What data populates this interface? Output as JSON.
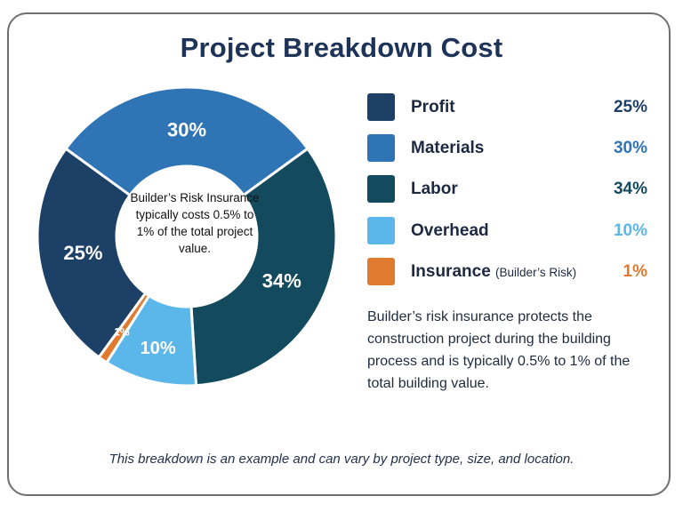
{
  "title": "Project Breakdown Cost",
  "center_note": "Builder’s Risk Insurance typically costs 0.5% to 1% of the total project value.",
  "description": "Builder’s risk insurance protects the construction project during the building process and is typically 0.5% to 1% of the total building value.",
  "footnote": "This breakdown is an example and can vary by project type, size, and location.",
  "legend": [
    {
      "label": "Profit",
      "sublabel": "",
      "value": "25%",
      "color": "#1d4066",
      "value_color": "#1d4066"
    },
    {
      "label": "Materials",
      "sublabel": "",
      "value": "30%",
      "color": "#2f74b5",
      "value_color": "#2f74b5"
    },
    {
      "label": "Labor",
      "sublabel": "",
      "value": "34%",
      "color": "#134a5e",
      "value_color": "#134a5e"
    },
    {
      "label": "Overhead",
      "sublabel": "",
      "value": "10%",
      "color": "#5bb7ea",
      "value_color": "#5bb7ea"
    },
    {
      "label": "Insurance",
      "sublabel": "(Builder’s Risk)",
      "value": "1%",
      "color": "#e07a2e",
      "value_color": "#e07a2e"
    }
  ],
  "chart_data": {
    "type": "pie",
    "donut": true,
    "title": "Project Breakdown Cost",
    "slices": [
      {
        "label": "Profit",
        "value": 25,
        "display": "25%",
        "color": "#1d4066"
      },
      {
        "label": "Materials",
        "value": 30,
        "display": "30%",
        "color": "#2f74b5"
      },
      {
        "label": "Labor",
        "value": 34,
        "display": "34%",
        "color": "#134a5e"
      },
      {
        "label": "Overhead",
        "value": 10,
        "display": "10%",
        "color": "#5bb7ea"
      },
      {
        "label": "Insurance",
        "value": 1,
        "display": "1%",
        "color": "#e07a2e"
      }
    ]
  }
}
